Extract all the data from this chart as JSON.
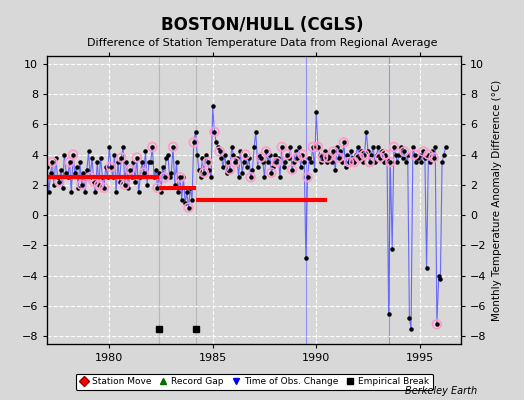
{
  "title": "BOSTON/HULL (CGLS)",
  "subtitle": "Difference of Station Temperature Data from Regional Average",
  "ylabel_right": "Monthly Temperature Anomaly Difference (°C)",
  "ylim": [
    -8.5,
    10.5
  ],
  "yticks": [
    -8,
    -6,
    -4,
    -2,
    0,
    2,
    4,
    6,
    8,
    10
  ],
  "xlim": [
    1977.0,
    1997.0
  ],
  "xticks": [
    1980,
    1985,
    1990,
    1995
  ],
  "bg_color": "#d8d8d8",
  "plot_bg_color": "#d8d8d8",
  "grid_color": "white",
  "watermark": "Berkeley Earth",
  "main_line_color": "#5555ff",
  "main_marker_color": "black",
  "qc_failed_color": "#ff99cc",
  "bias_color": "red",
  "empirical_break_years": [
    1982.42,
    1984.17
  ],
  "obs_change_years": [
    1989.5,
    1993.5
  ],
  "bias_segments": [
    {
      "x_start": 1977.0,
      "x_end": 1982.42,
      "y": 2.5
    },
    {
      "x_start": 1982.42,
      "x_end": 1984.17,
      "y": 1.8
    },
    {
      "x_start": 1984.17,
      "x_end": 1990.5,
      "y": 1.0
    }
  ],
  "time_series_years": [
    1977.0,
    1977.08,
    1977.17,
    1977.25,
    1977.33,
    1977.42,
    1977.5,
    1977.58,
    1977.67,
    1977.75,
    1977.83,
    1977.92,
    1978.0,
    1978.08,
    1978.17,
    1978.25,
    1978.33,
    1978.42,
    1978.5,
    1978.58,
    1978.67,
    1978.75,
    1978.83,
    1978.92,
    1979.0,
    1979.08,
    1979.17,
    1979.25,
    1979.33,
    1979.42,
    1979.5,
    1979.58,
    1979.67,
    1979.75,
    1979.83,
    1979.92,
    1980.0,
    1980.08,
    1980.17,
    1980.25,
    1980.33,
    1980.42,
    1980.5,
    1980.58,
    1980.67,
    1980.75,
    1980.83,
    1980.92,
    1981.0,
    1981.08,
    1981.17,
    1981.25,
    1981.33,
    1981.42,
    1981.5,
    1981.58,
    1981.67,
    1981.75,
    1981.83,
    1981.92,
    1982.0,
    1982.08,
    1982.17,
    1982.25,
    1982.33,
    1982.42,
    1982.5,
    1982.58,
    1982.67,
    1982.75,
    1982.83,
    1982.92,
    1983.0,
    1983.08,
    1983.17,
    1983.25,
    1983.33,
    1983.42,
    1983.5,
    1983.58,
    1983.67,
    1983.75,
    1983.83,
    1983.92,
    1984.0,
    1984.08,
    1984.17,
    1984.25,
    1984.33,
    1984.42,
    1984.5,
    1984.58,
    1984.67,
    1984.75,
    1984.83,
    1984.92,
    1985.0,
    1985.08,
    1985.17,
    1985.25,
    1985.33,
    1985.42,
    1985.5,
    1985.58,
    1985.67,
    1985.75,
    1985.83,
    1985.92,
    1986.0,
    1986.08,
    1986.17,
    1986.25,
    1986.33,
    1986.42,
    1986.5,
    1986.58,
    1986.67,
    1986.75,
    1986.83,
    1986.92,
    1987.0,
    1987.08,
    1987.17,
    1987.25,
    1987.33,
    1987.42,
    1987.5,
    1987.58,
    1987.67,
    1987.75,
    1987.83,
    1987.92,
    1988.0,
    1988.08,
    1988.17,
    1988.25,
    1988.33,
    1988.42,
    1988.5,
    1988.58,
    1988.67,
    1988.75,
    1988.83,
    1988.92,
    1989.0,
    1989.08,
    1989.17,
    1989.25,
    1989.33,
    1989.42,
    1989.5,
    1989.58,
    1989.67,
    1989.75,
    1989.83,
    1989.92,
    1990.0,
    1990.08,
    1990.17,
    1990.25,
    1990.33,
    1990.42,
    1990.5,
    1990.58,
    1990.67,
    1990.75,
    1990.83,
    1990.92,
    1991.0,
    1991.08,
    1991.17,
    1991.25,
    1991.33,
    1991.42,
    1991.5,
    1991.58,
    1991.67,
    1991.75,
    1991.83,
    1991.92,
    1992.0,
    1992.08,
    1992.17,
    1992.25,
    1992.33,
    1992.42,
    1992.5,
    1992.58,
    1992.67,
    1992.75,
    1992.83,
    1992.92,
    1993.0,
    1993.08,
    1993.17,
    1993.25,
    1993.33,
    1993.42,
    1993.5,
    1993.58,
    1993.67,
    1993.75,
    1993.83,
    1993.92,
    1994.0,
    1994.08,
    1994.17,
    1994.25,
    1994.33,
    1994.42,
    1994.5,
    1994.58,
    1994.67,
    1994.75,
    1994.83,
    1994.92,
    1995.0,
    1995.08,
    1995.17,
    1995.25,
    1995.33,
    1995.42,
    1995.5,
    1995.58,
    1995.67,
    1995.75,
    1995.83,
    1995.92,
    1996.0,
    1996.08,
    1996.17,
    1996.25
  ],
  "time_series_values": [
    3.2,
    1.5,
    2.8,
    3.5,
    2.0,
    3.8,
    2.5,
    2.2,
    3.0,
    1.8,
    4.0,
    2.8,
    2.5,
    3.5,
    1.5,
    4.0,
    2.8,
    3.2,
    1.8,
    3.5,
    2.0,
    2.8,
    1.5,
    3.0,
    4.2,
    2.5,
    3.8,
    2.2,
    1.5,
    3.5,
    2.0,
    3.8,
    2.5,
    1.8,
    3.2,
    2.5,
    4.5,
    3.2,
    2.5,
    4.0,
    1.5,
    3.5,
    2.2,
    3.8,
    4.5,
    2.0,
    3.5,
    1.8,
    3.0,
    2.5,
    3.5,
    2.2,
    3.8,
    1.5,
    2.5,
    3.5,
    2.8,
    4.2,
    2.0,
    3.5,
    3.5,
    4.5,
    2.5,
    3.0,
    1.8,
    2.8,
    1.5,
    3.2,
    2.5,
    3.8,
    4.0,
    2.5,
    2.8,
    4.5,
    2.0,
    3.5,
    1.5,
    2.5,
    1.0,
    2.5,
    0.8,
    1.5,
    0.5,
    1.8,
    1.0,
    4.8,
    5.5,
    4.0,
    3.0,
    2.5,
    3.8,
    2.8,
    4.0,
    3.5,
    3.0,
    2.5,
    7.2,
    5.5,
    4.8,
    4.5,
    4.2,
    3.8,
    3.2,
    4.0,
    2.8,
    3.5,
    3.0,
    4.5,
    4.0,
    3.5,
    3.8,
    2.5,
    4.2,
    2.8,
    3.5,
    4.0,
    3.2,
    3.8,
    2.5,
    3.0,
    4.5,
    5.5,
    3.2,
    4.0,
    3.8,
    3.5,
    2.5,
    4.2,
    3.5,
    4.0,
    2.8,
    3.2,
    4.0,
    3.5,
    3.8,
    2.5,
    4.5,
    3.2,
    3.5,
    4.0,
    3.8,
    4.5,
    3.0,
    3.5,
    4.2,
    3.8,
    4.5,
    3.2,
    4.0,
    3.5,
    -2.8,
    2.5,
    3.8,
    3.5,
    4.5,
    3.0,
    6.8,
    4.5,
    4.0,
    3.5,
    3.8,
    4.2,
    3.5,
    3.8,
    4.0,
    3.5,
    4.2,
    3.0,
    4.5,
    3.8,
    4.2,
    3.5,
    4.8,
    3.2,
    4.0,
    3.5,
    4.2,
    3.8,
    3.5,
    4.0,
    4.5,
    3.8,
    4.2,
    3.5,
    4.0,
    5.5,
    4.2,
    3.5,
    4.0,
    4.5,
    3.5,
    4.0,
    4.5,
    3.8,
    4.2,
    3.5,
    4.0,
    3.8,
    -6.5,
    3.5,
    -2.2,
    4.5,
    4.0,
    3.5,
    4.0,
    4.5,
    3.8,
    4.2,
    3.5,
    4.0,
    -6.8,
    -7.5,
    4.5,
    4.0,
    3.5,
    3.8,
    4.0,
    3.5,
    4.2,
    3.8,
    -3.5,
    4.0,
    3.5,
    4.2,
    3.8,
    4.5,
    -7.2,
    -4.0,
    -4.2,
    3.5,
    4.0,
    4.5
  ],
  "qc_failed_indices": [
    3,
    7,
    13,
    15,
    20,
    25,
    27,
    30,
    33,
    37,
    43,
    45,
    48,
    52,
    56,
    61,
    64,
    68,
    73,
    77,
    82,
    85,
    91,
    93,
    97,
    100,
    106,
    109,
    115,
    118,
    124,
    127,
    130,
    133,
    136,
    139,
    142,
    145,
    148,
    151,
    154,
    157,
    160,
    163,
    166,
    169,
    172,
    175,
    178,
    181,
    184,
    187,
    193,
    196,
    199,
    201,
    207,
    213,
    218,
    221,
    224,
    226
  ]
}
